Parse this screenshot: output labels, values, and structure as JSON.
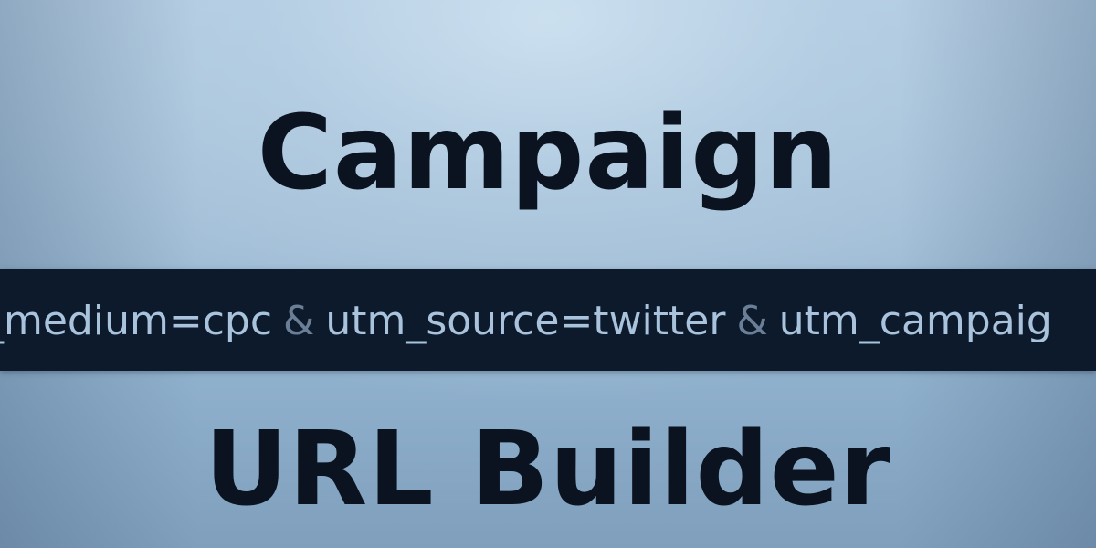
{
  "heading": {
    "line1": "Campaign",
    "line2": "URL Builder"
  },
  "url_strip": {
    "segments": [
      "_medium=cpc",
      "utm_source=twitter",
      "utm_campaig"
    ],
    "separator": "&"
  },
  "colors": {
    "title_text": "#0b1320",
    "band_background": "#0c1a2c",
    "band_text": "#a9c3dc",
    "separator": "#6a7f96",
    "background_light": "#c6dbec",
    "background_dark": "#7f9fbd"
  }
}
